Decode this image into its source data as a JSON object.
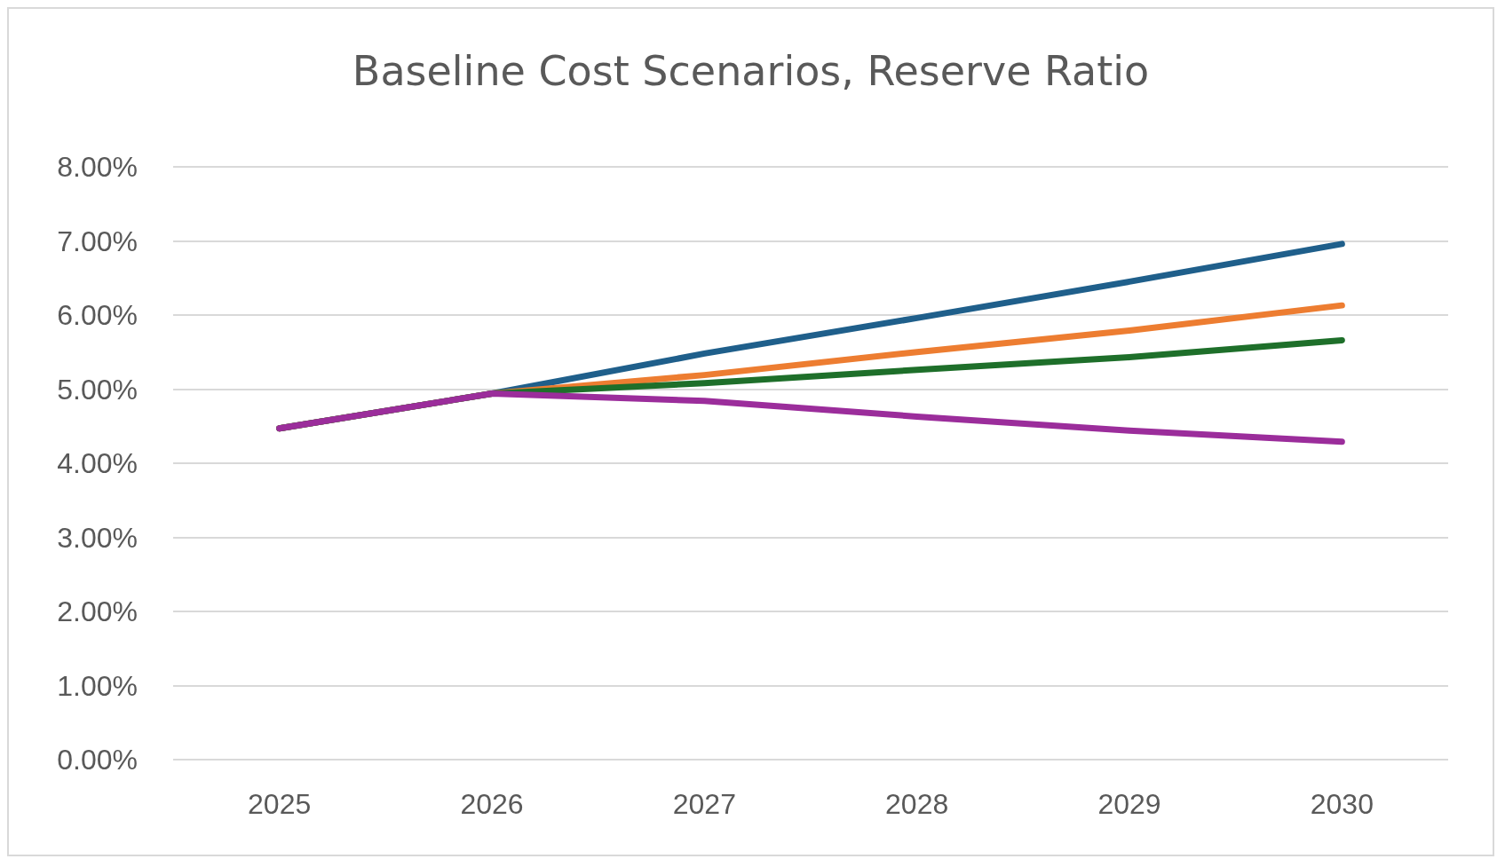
{
  "chart_data": {
    "type": "line",
    "title": "Baseline Cost Scenarios, Reserve Ratio",
    "categories": [
      "2025",
      "2026",
      "2027",
      "2028",
      "2029",
      "2030"
    ],
    "series": [
      {
        "color": "#1f5f8b",
        "values": [
          4.47,
          4.94,
          5.48,
          5.96,
          6.45,
          6.96
        ]
      },
      {
        "color": "#ed7d31",
        "values": [
          4.47,
          4.94,
          5.19,
          5.5,
          5.79,
          6.13
        ]
      },
      {
        "color": "#1e6f2a",
        "values": [
          4.47,
          4.94,
          5.08,
          5.26,
          5.43,
          5.66
        ]
      },
      {
        "color": "#9b2d9b",
        "values": [
          4.47,
          4.94,
          4.84,
          4.63,
          4.44,
          4.29
        ]
      }
    ],
    "ylim": [
      0,
      8
    ],
    "yticks": [
      {
        "value": 0,
        "label": "0.00%"
      },
      {
        "value": 1,
        "label": "1.00%"
      },
      {
        "value": 2,
        "label": "2.00%"
      },
      {
        "value": 3,
        "label": "3.00%"
      },
      {
        "value": 4,
        "label": "4.00%"
      },
      {
        "value": 5,
        "label": "5.00%"
      },
      {
        "value": 6,
        "label": "6.00%"
      },
      {
        "value": 7,
        "label": "7.00%"
      },
      {
        "value": 8,
        "label": "8.00%"
      }
    ],
    "grid": "y",
    "marker": "none",
    "line_style": "solid"
  }
}
